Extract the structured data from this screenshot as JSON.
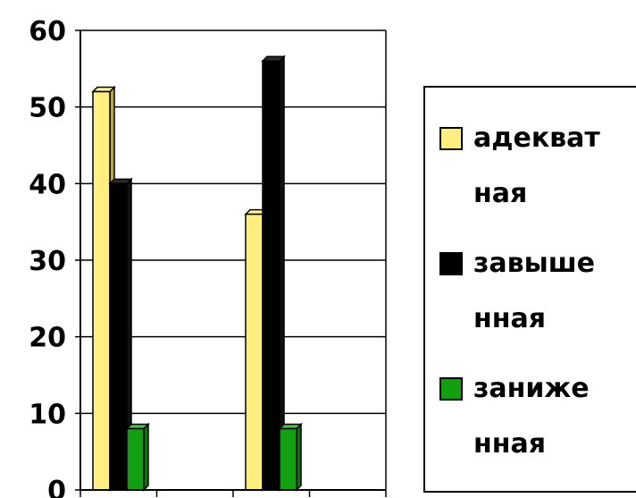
{
  "chart_data": {
    "type": "bar",
    "title": "",
    "xlabel": "",
    "ylabel": "",
    "categories": [
      "",
      "",
      "",
      ""
    ],
    "ylim": [
      0,
      60
    ],
    "yticks": [
      0,
      10,
      20,
      30,
      40,
      50,
      60
    ],
    "grid": true,
    "legend_position": "right",
    "series": [
      {
        "name": "адекватная",
        "legend_lines": [
          "адекват",
          "ная"
        ],
        "color": "#ffee80",
        "values": [
          52,
          null,
          36,
          null
        ]
      },
      {
        "name": "завышенная",
        "legend_lines": [
          "завыше",
          "нная"
        ],
        "color": "#000000",
        "values": [
          40,
          null,
          56,
          null
        ]
      },
      {
        "name": "заниженная",
        "legend_lines": [
          "заниже",
          "нная"
        ],
        "color": "#12a012",
        "values": [
          8,
          null,
          8,
          null
        ]
      }
    ]
  }
}
